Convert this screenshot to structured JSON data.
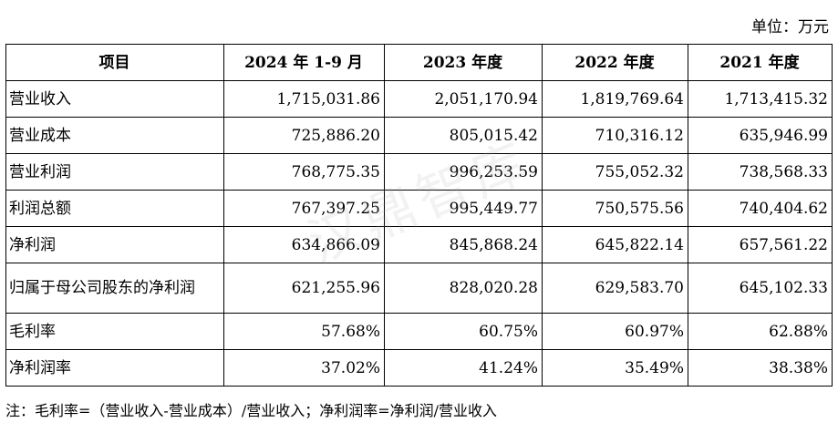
{
  "unit_label": "单位：万元",
  "table": {
    "headers": [
      "项目",
      "2024 年 1-9 月",
      "2023 年度",
      "2022 年度",
      "2021 年度"
    ],
    "rows": [
      {
        "item": "营业收入",
        "values": [
          "1,715,031.86",
          "2,051,170.94",
          "1,819,769.64",
          "1,713,415.32"
        ]
      },
      {
        "item": "营业成本",
        "values": [
          "725,886.20",
          "805,015.42",
          "710,316.12",
          "635,946.99"
        ]
      },
      {
        "item": "营业利润",
        "values": [
          "768,775.35",
          "996,253.59",
          "755,052.32",
          "738,568.33"
        ]
      },
      {
        "item": "利润总额",
        "values": [
          "767,397.25",
          "995,449.77",
          "750,575.56",
          "740,404.62"
        ]
      },
      {
        "item": "净利润",
        "values": [
          "634,866.09",
          "845,868.24",
          "645,822.14",
          "657,561.22"
        ]
      },
      {
        "item": "归属于母公司股东的净利润",
        "values": [
          "621,255.96",
          "828,020.28",
          "629,583.70",
          "645,102.33"
        ]
      },
      {
        "item": "毛利率",
        "values": [
          "57.68%",
          "60.75%",
          "60.97%",
          "62.88%"
        ]
      },
      {
        "item": "净利润率",
        "values": [
          "37.02%",
          "41.24%",
          "35.49%",
          "38.38%"
        ]
      }
    ]
  },
  "note": "注：毛利率=（营业收入-营业成本）/营业收入；净利润率=净利润/营业收入",
  "watermark": "汉鼎智库"
}
